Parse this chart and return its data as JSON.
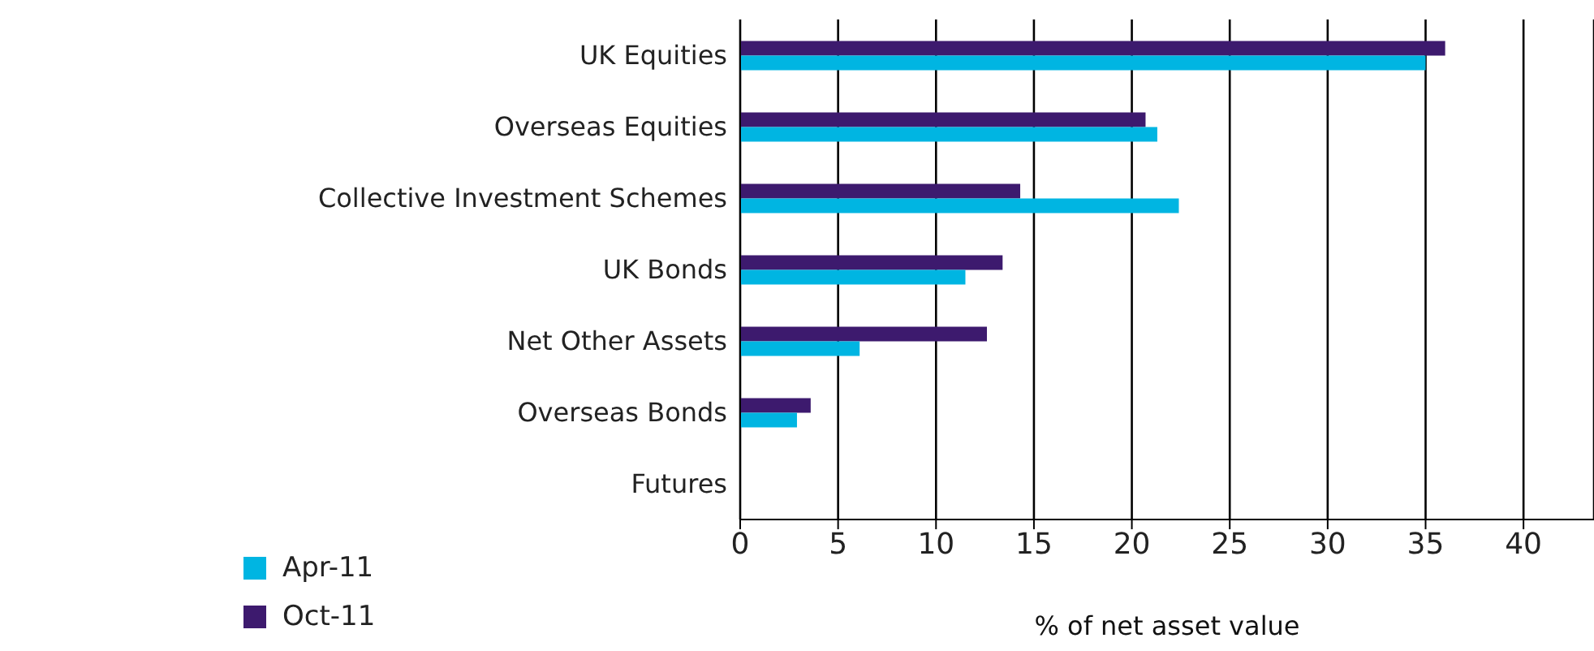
{
  "chart_data": {
    "type": "bar",
    "orientation": "horizontal",
    "xlabel": "% of net asset value",
    "categories": [
      "UK Equities",
      "Overseas Equities ",
      "Collective Investment Schemes",
      "UK Bonds",
      "Net Other Assets",
      "Overseas Bonds",
      "Futures"
    ],
    "series": [
      {
        "name": "Oct-11",
        "color": "#3d1a6e",
        "values": [
          36,
          20.7,
          14.3,
          13.4,
          12.6,
          3.6,
          0
        ]
      },
      {
        "name": "Apr-11",
        "color": "#00b5e2",
        "values": [
          35,
          21.3,
          22.4,
          11.5,
          6.1,
          2.9,
          0
        ]
      }
    ],
    "xlim": [
      0,
      43.6
    ],
    "xticks": [
      0,
      5,
      10,
      15,
      20,
      25,
      30,
      35,
      40
    ],
    "grid": "x",
    "legend": "bottom left"
  }
}
